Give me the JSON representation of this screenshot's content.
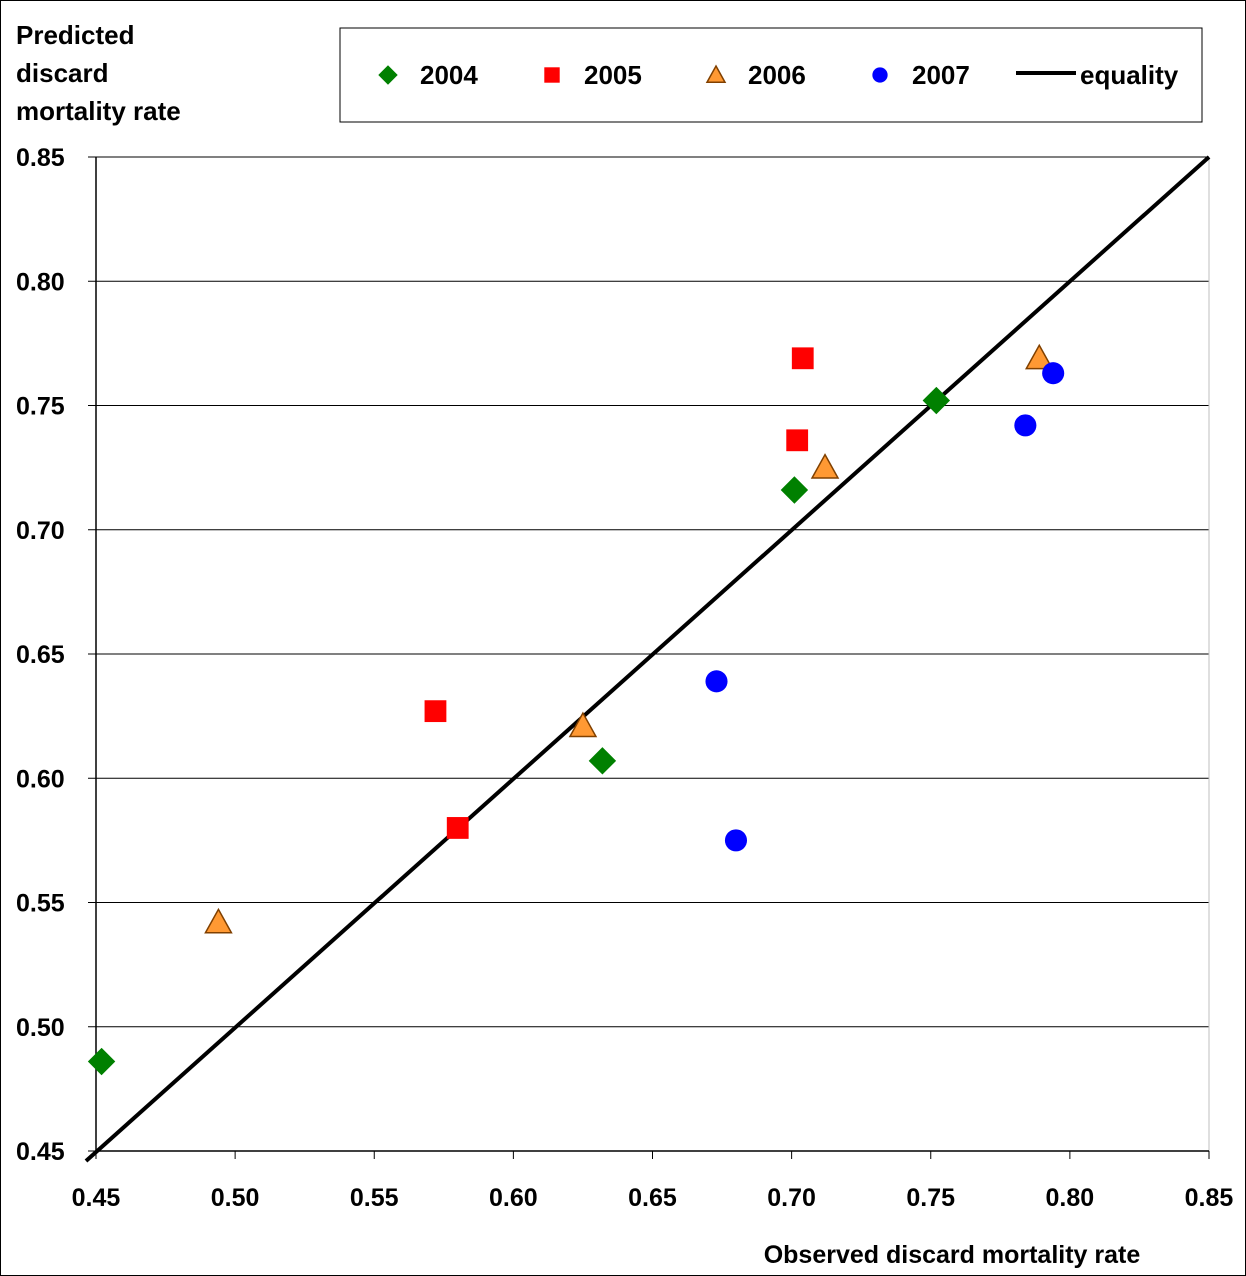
{
  "chart_data": {
    "type": "scatter",
    "ylabel_lines": [
      "Predicted",
      "discard",
      "mortality rate"
    ],
    "xlabel": "Observed discard mortality rate",
    "xlim": [
      0.45,
      0.85
    ],
    "ylim": [
      0.45,
      0.85
    ],
    "xticks": [
      "0.45",
      "0.50",
      "0.55",
      "0.60",
      "0.65",
      "0.70",
      "0.75",
      "0.80",
      "0.85"
    ],
    "yticks": [
      "0.85",
      "0.80",
      "0.75",
      "0.70",
      "0.65",
      "0.60",
      "0.55",
      "0.50",
      "0.45"
    ],
    "grid": "horizontal",
    "legend_position": "top",
    "series": [
      {
        "name": "2004",
        "marker": "diamond",
        "color": "#008000",
        "points": [
          [
            0.452,
            0.486
          ],
          [
            0.632,
            0.607
          ],
          [
            0.701,
            0.716
          ],
          [
            0.752,
            0.752
          ]
        ]
      },
      {
        "name": "2005",
        "marker": "square",
        "color": "#ff0000",
        "points": [
          [
            0.572,
            0.627
          ],
          [
            0.58,
            0.58
          ],
          [
            0.702,
            0.736
          ],
          [
            0.704,
            0.769
          ]
        ]
      },
      {
        "name": "2006",
        "marker": "triangle",
        "color": "#ff9933",
        "points": [
          [
            0.494,
            0.542
          ],
          [
            0.625,
            0.621
          ],
          [
            0.712,
            0.725
          ],
          [
            0.789,
            0.769
          ]
        ]
      },
      {
        "name": "2007",
        "marker": "circle",
        "color": "#0000ff",
        "points": [
          [
            0.673,
            0.639
          ],
          [
            0.68,
            0.575
          ],
          [
            0.784,
            0.742
          ],
          [
            0.794,
            0.763
          ]
        ]
      }
    ],
    "line": {
      "name": "equality",
      "color": "#000000",
      "points": [
        [
          0.45,
          0.45
        ],
        [
          0.85,
          0.85
        ]
      ]
    }
  }
}
